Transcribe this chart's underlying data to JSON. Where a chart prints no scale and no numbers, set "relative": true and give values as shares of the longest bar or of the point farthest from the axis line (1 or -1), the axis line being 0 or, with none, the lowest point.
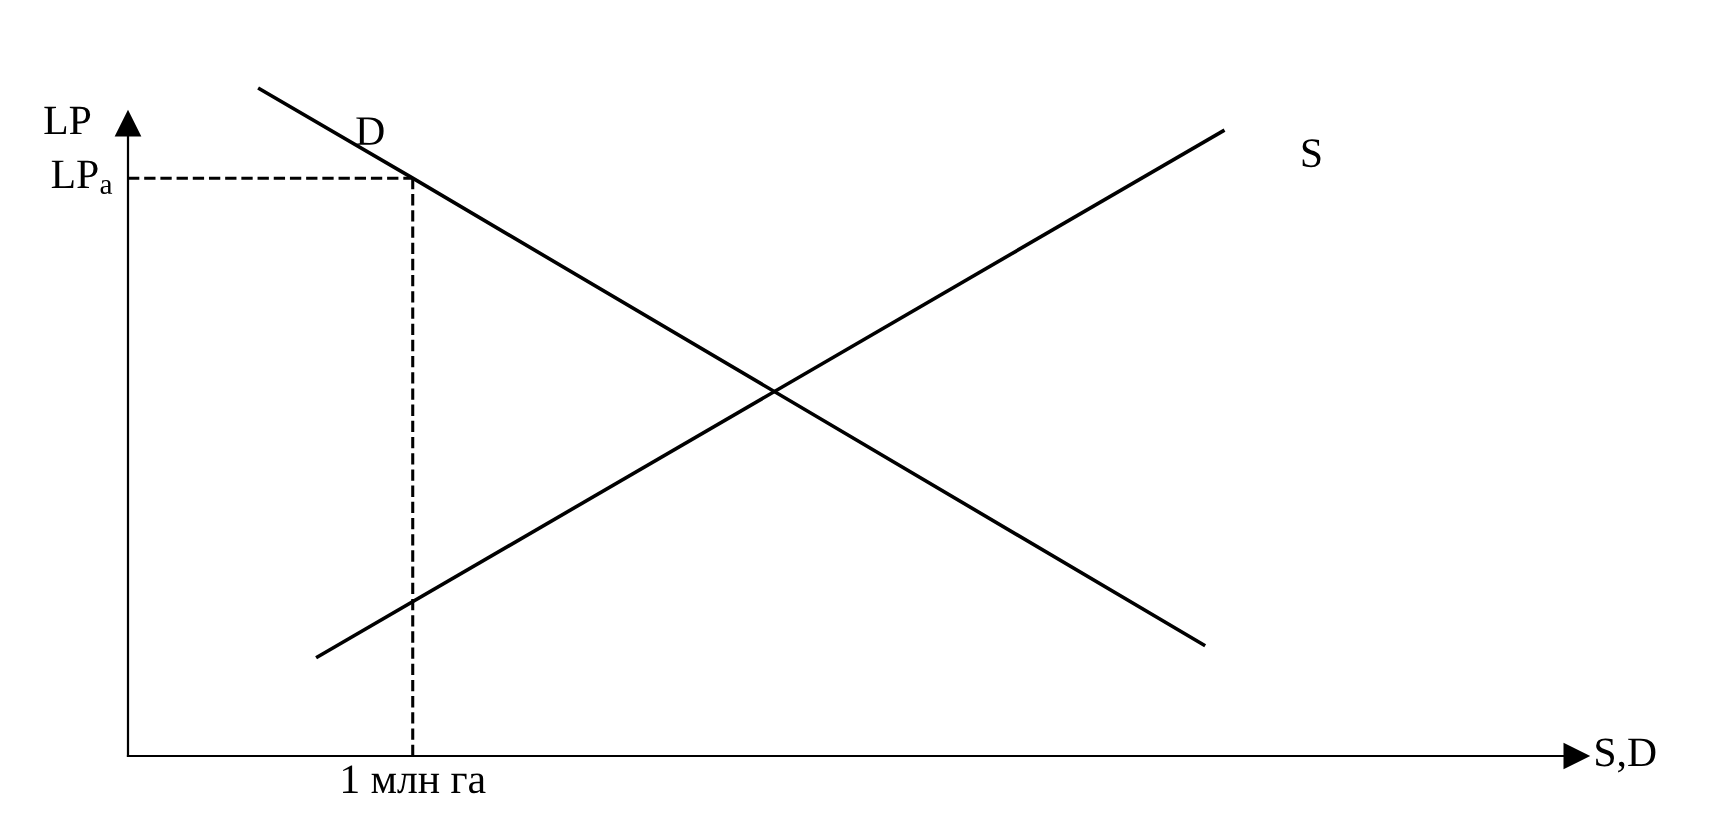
{
  "chart_data": {
    "type": "line",
    "relative": true,
    "ylabel": "LP",
    "categories": [
      null,
      null,
      null,
      null,
      null,
      null,
      null,
      null,
      null,
      null,
      null,
      null,
      null,
      null,
      null,
      null,
      null,
      null,
      null,
      null,
      null,
      null,
      null,
      null,
      null,
      null,
      null,
      null,
      null,
      null,
      null,
      null,
      null,
      null,
      null,
      null,
      null,
      null,
      null,
      null,
      null,
      null,
      null,
      null,
      null,
      null,
      null,
      null,
      null,
      null,
      null
    ],
    "series": [
      {
        "name": "D",
        "color": "#000000",
        "values": [
          1.0,
          null,
          null,
          null,
          null,
          null,
          null,
          null,
          0.865,
          null,
          null,
          null,
          null,
          null,
          null,
          null,
          null,
          null,
          null,
          null,
          null,
          null,
          null,
          null,
          null,
          null,
          null,
          null,
          null,
          null,
          null,
          null,
          null,
          null,
          null,
          null,
          null,
          null,
          null,
          null,
          null,
          null,
          null,
          null,
          null,
          null,
          null,
          null,
          null,
          0.165,
          null
        ]
      },
      {
        "name": "S",
        "color": "#000000",
        "values": [
          null,
          null,
          null,
          0.147,
          null,
          null,
          null,
          null,
          null,
          null,
          null,
          null,
          null,
          null,
          null,
          null,
          null,
          null,
          null,
          null,
          null,
          null,
          null,
          null,
          null,
          null,
          null,
          null,
          null,
          null,
          null,
          null,
          null,
          null,
          null,
          null,
          null,
          null,
          null,
          null,
          null,
          null,
          null,
          null,
          null,
          null,
          null,
          null,
          null,
          null,
          0.937
        ]
      }
    ],
    "ref_lines": [
      {
        "axis": "y",
        "value": 0.865,
        "label": "LP$_{a}$",
        "color": "#000000",
        "line_style": "dashed"
      }
    ],
    "annotations": [
      "1 млн га",
      "S,D"
    ],
    "marker": "none",
    "line_style": "solid"
  }
}
